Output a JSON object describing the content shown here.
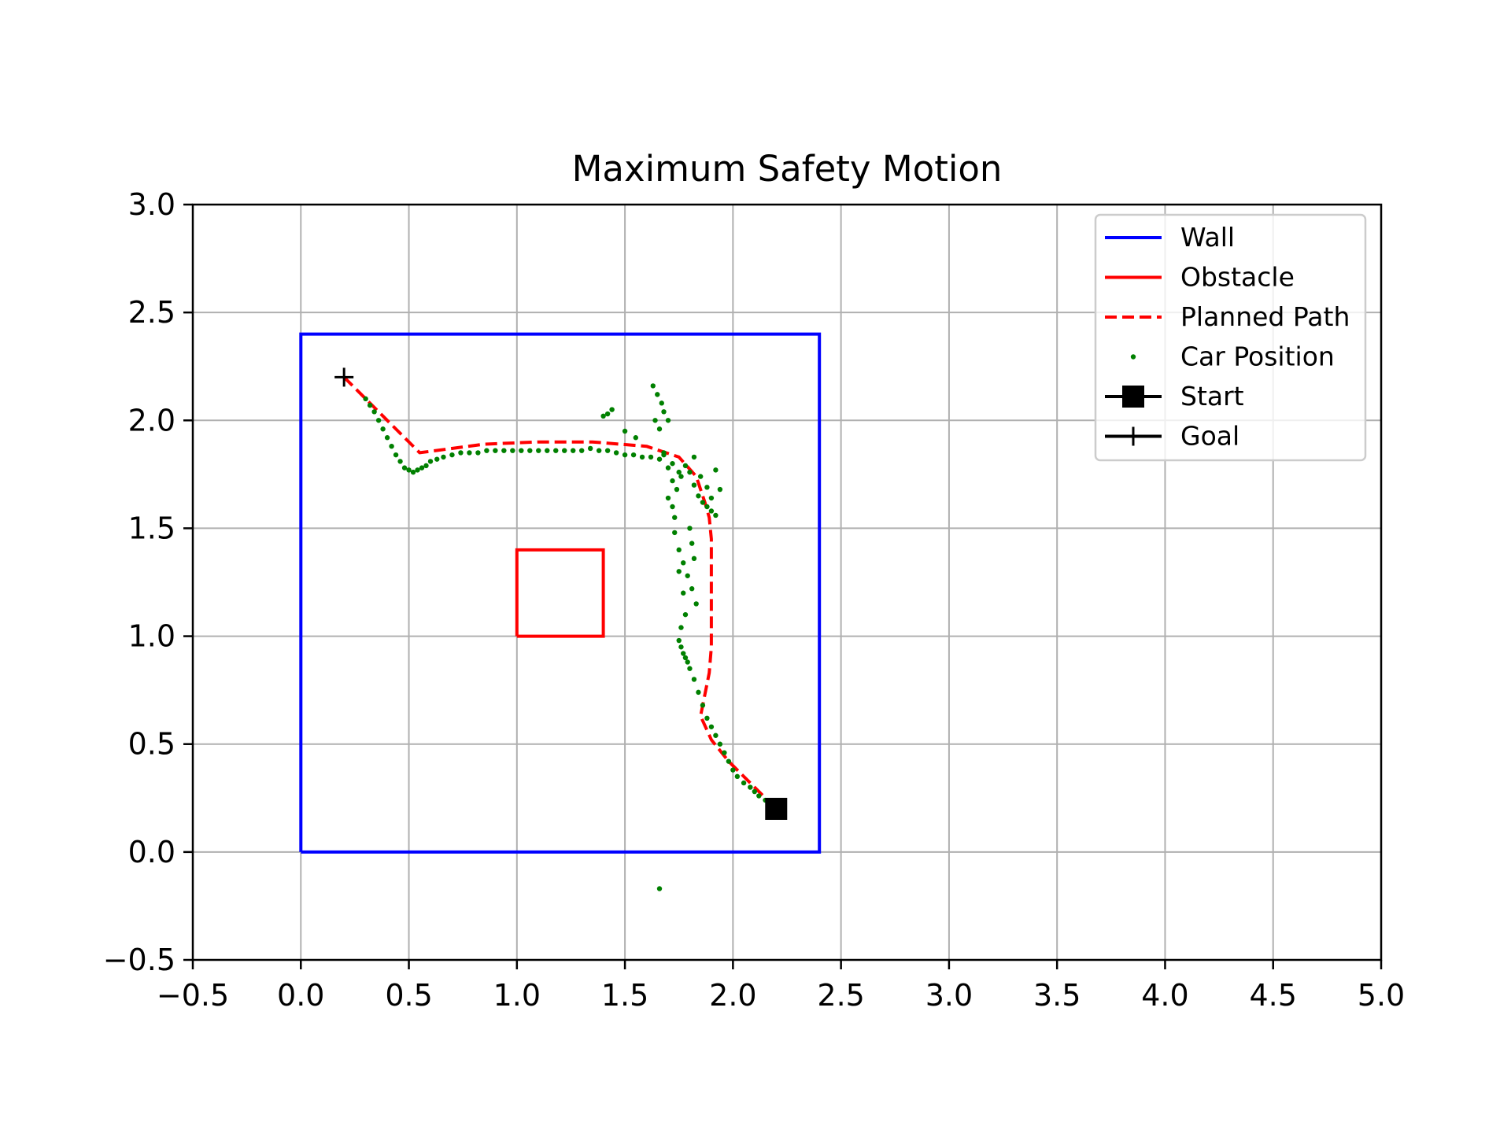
{
  "chart_data": {
    "type": "line",
    "title": "Maximum Safety Motion",
    "xlabel": "",
    "ylabel": "",
    "xlim": [
      -0.5,
      5.0
    ],
    "ylim": [
      -0.5,
      3.0
    ],
    "xticks": [
      -0.5,
      0.0,
      0.5,
      1.0,
      1.5,
      2.0,
      2.5,
      3.0,
      3.5,
      4.0,
      4.5,
      5.0
    ],
    "yticks": [
      -0.5,
      0.0,
      0.5,
      1.0,
      1.5,
      2.0,
      2.5,
      3.0
    ],
    "xtick_labels": [
      "−0.5",
      "0.0",
      "0.5",
      "1.0",
      "1.5",
      "2.0",
      "2.5",
      "3.0",
      "3.5",
      "4.0",
      "4.5",
      "5.0"
    ],
    "ytick_labels": [
      "−0.5",
      "0.0",
      "0.5",
      "1.0",
      "1.5",
      "2.0",
      "2.5",
      "3.0"
    ],
    "grid": true,
    "legend_position": "top-right",
    "colors": {
      "wall": "#0000ff",
      "obstacle": "#ff0000",
      "planned_path": "#ff0000",
      "car_position": "#008000",
      "marker": "#000000"
    },
    "series": [
      {
        "name": "Wall",
        "kind": "line",
        "x": [
          0.0,
          2.4,
          2.4,
          0.0,
          0.0
        ],
        "y": [
          0.0,
          0.0,
          2.4,
          2.4,
          0.0
        ]
      },
      {
        "name": "Obstacle",
        "kind": "line",
        "x": [
          1.0,
          1.4,
          1.4,
          1.0,
          1.0
        ],
        "y": [
          1.0,
          1.0,
          1.4,
          1.4,
          1.0
        ]
      },
      {
        "name": "Planned Path",
        "kind": "dashed-line",
        "x": [
          0.2,
          0.4,
          0.55,
          0.85,
          1.1,
          1.35,
          1.6,
          1.75,
          1.83,
          1.87,
          1.89,
          1.9,
          1.9,
          1.9,
          1.89,
          1.85,
          1.9,
          1.98,
          2.08,
          2.2
        ],
        "y": [
          2.2,
          2.0,
          1.85,
          1.89,
          1.9,
          1.9,
          1.88,
          1.83,
          1.74,
          1.62,
          1.55,
          1.45,
          1.2,
          0.95,
          0.83,
          0.63,
          0.52,
          0.42,
          0.32,
          0.2
        ]
      },
      {
        "name": "Car Position",
        "kind": "scatter",
        "x": [
          0.3,
          0.32,
          0.34,
          0.36,
          0.38,
          0.4,
          0.42,
          0.44,
          0.46,
          0.48,
          0.5,
          0.52,
          0.54,
          0.56,
          0.58,
          0.6,
          0.63,
          0.66,
          0.7,
          0.74,
          0.78,
          0.82,
          0.86,
          0.9,
          0.94,
          0.98,
          1.02,
          1.06,
          1.1,
          1.14,
          1.18,
          1.22,
          1.26,
          1.3,
          1.34,
          1.38,
          1.42,
          1.46,
          1.5,
          1.54,
          1.58,
          1.62,
          1.66,
          1.68,
          1.7,
          1.72,
          1.74,
          1.76,
          1.78,
          1.8,
          1.82,
          1.84,
          1.86,
          1.88,
          1.9,
          1.92,
          1.7,
          1.72,
          1.73,
          1.75,
          1.77,
          1.79,
          1.81,
          1.83,
          1.8,
          1.81,
          1.82,
          1.78,
          1.76,
          1.75,
          1.76,
          1.77,
          1.78,
          1.79,
          1.8,
          1.82,
          1.84,
          1.86,
          1.88,
          1.9,
          1.92,
          1.94,
          1.96,
          1.98,
          2.0,
          2.02,
          2.05,
          2.08,
          2.1,
          2.12,
          2.15,
          2.18,
          2.2,
          1.63,
          1.65,
          1.67,
          1.68,
          1.7,
          1.64,
          1.66,
          1.4,
          1.42,
          1.44,
          1.5,
          1.55,
          1.68,
          1.72,
          1.75,
          1.82,
          1.85,
          1.88,
          1.9,
          1.92,
          1.94,
          1.73,
          1.75,
          1.77,
          1.66
        ],
        "y": [
          2.1,
          2.07,
          2.04,
          2.0,
          1.96,
          1.92,
          1.88,
          1.84,
          1.81,
          1.78,
          1.77,
          1.76,
          1.77,
          1.78,
          1.79,
          1.81,
          1.82,
          1.83,
          1.84,
          1.85,
          1.85,
          1.85,
          1.86,
          1.86,
          1.86,
          1.86,
          1.86,
          1.86,
          1.86,
          1.86,
          1.86,
          1.86,
          1.86,
          1.86,
          1.87,
          1.86,
          1.86,
          1.85,
          1.84,
          1.84,
          1.83,
          1.83,
          1.82,
          1.84,
          1.78,
          1.72,
          1.68,
          1.74,
          1.79,
          1.76,
          1.7,
          1.65,
          1.62,
          1.6,
          1.58,
          1.56,
          1.64,
          1.6,
          1.48,
          1.4,
          1.34,
          1.28,
          1.22,
          1.15,
          1.5,
          1.43,
          1.36,
          1.1,
          1.04,
          0.98,
          0.95,
          0.92,
          0.9,
          0.88,
          0.85,
          0.8,
          0.74,
          0.68,
          0.62,
          0.58,
          0.54,
          0.5,
          0.46,
          0.42,
          0.38,
          0.35,
          0.32,
          0.3,
          0.28,
          0.26,
          0.24,
          0.22,
          0.21,
          2.16,
          2.12,
          2.08,
          2.04,
          2.0,
          2.0,
          1.96,
          2.02,
          2.03,
          2.05,
          1.95,
          1.92,
          1.85,
          1.8,
          1.76,
          1.83,
          1.74,
          1.69,
          1.64,
          1.77,
          1.68,
          1.55,
          1.3,
          1.2,
          -0.17
        ]
      },
      {
        "name": "Start",
        "kind": "marker-square",
        "x": [
          2.2
        ],
        "y": [
          0.2
        ]
      },
      {
        "name": "Goal",
        "kind": "marker-plus",
        "x": [
          0.2
        ],
        "y": [
          2.2
        ]
      }
    ]
  }
}
